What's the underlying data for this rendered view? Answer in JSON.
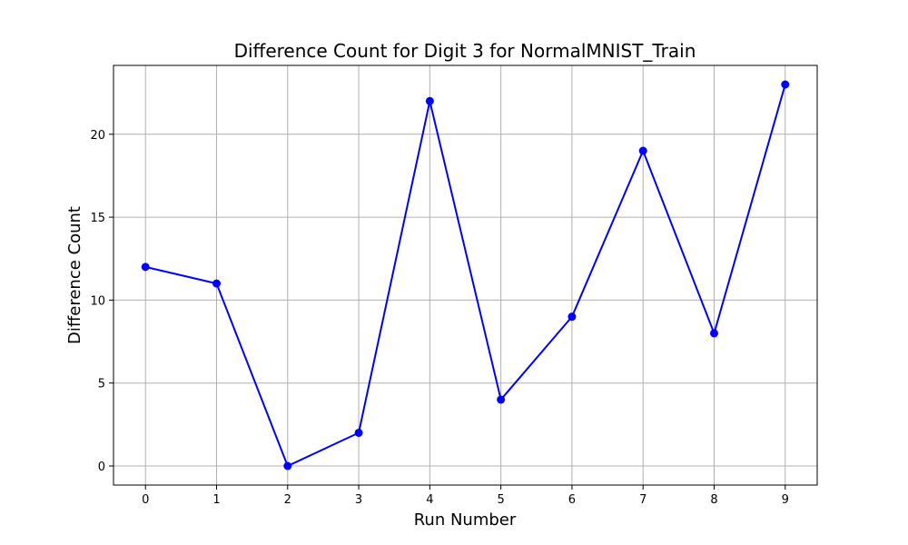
{
  "chart_data": {
    "type": "line",
    "title": "Difference Count for Digit 3 for NormalMNIST_Train",
    "xlabel": "Run Number",
    "ylabel": "Difference Count",
    "x": [
      0,
      1,
      2,
      3,
      4,
      5,
      6,
      7,
      8,
      9
    ],
    "series": [
      {
        "values": [
          12,
          11,
          0,
          2,
          22,
          4,
          9,
          19,
          8,
          23
        ],
        "color": "#0000ff",
        "marker": "circle"
      }
    ],
    "xlim": [
      -0.45,
      9.45
    ],
    "ylim": [
      -1.15,
      24.15
    ],
    "xticks": [
      0,
      1,
      2,
      3,
      4,
      5,
      6,
      7,
      8,
      9
    ],
    "yticks": [
      0,
      5,
      10,
      15,
      20
    ],
    "grid": true,
    "legend": "none"
  }
}
